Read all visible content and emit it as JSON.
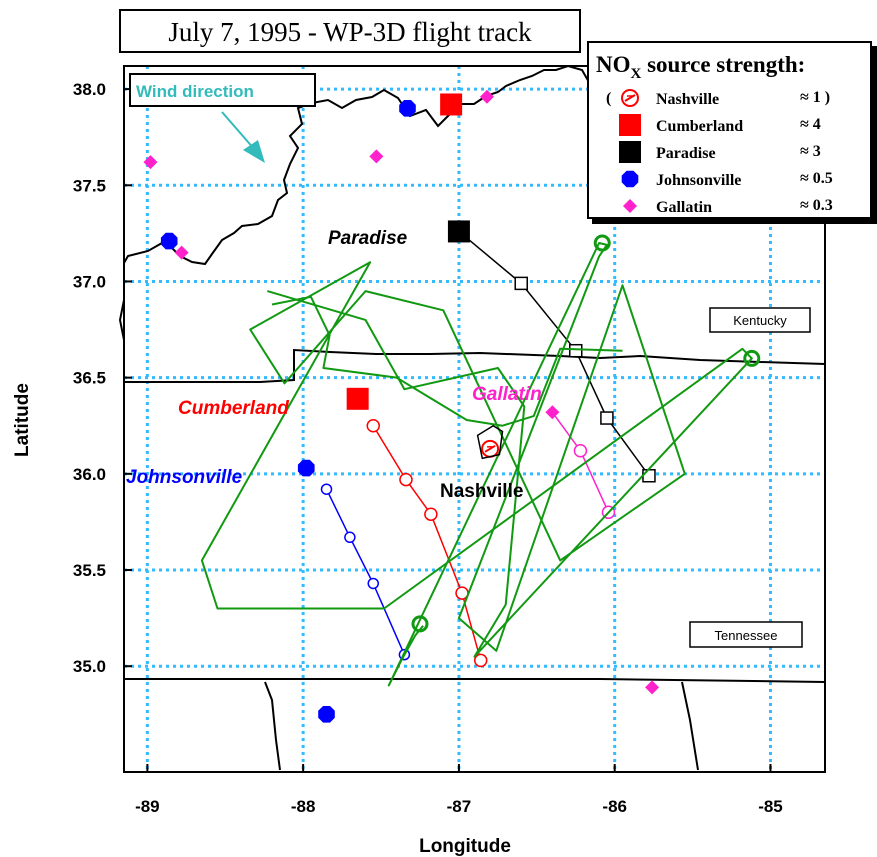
{
  "title": "July 7, 1995 - WP-3D flight track",
  "axes": {
    "xlabel": "Longitude",
    "ylabel": "Latitude",
    "xticks": [
      "-89",
      "-88",
      "-87",
      "-86",
      "-85"
    ],
    "yticks": [
      "35.0",
      "35.5",
      "36.0",
      "36.5",
      "37.0",
      "37.5",
      "38.0"
    ],
    "xrange": [
      -89.15,
      -84.65
    ],
    "yrange": [
      34.45,
      38.12
    ],
    "grid": true
  },
  "colors": {
    "grid": "#33bbff",
    "track": "#119911",
    "cumberland": "#ff0000",
    "paradise": "#000000",
    "johnsonville": "#0000ff",
    "gallatin": "#ff22cc",
    "nashville": "#ff0000",
    "wind": "#33bbbb"
  },
  "legend": {
    "title_main": "NO",
    "title_sub": "X",
    "title_rest": " source strength:",
    "placement": "top-right",
    "rows": [
      {
        "name": "Nashville",
        "value": "≈ 1 )",
        "marker": "nashville-symbol",
        "prefix": "("
      },
      {
        "name": "Cumberland",
        "value": "≈ 4",
        "marker": "red-square"
      },
      {
        "name": "Paradise",
        "value": "≈ 3",
        "marker": "black-square"
      },
      {
        "name": "Johnsonville",
        "value": "≈ 0.5",
        "marker": "blue-octagon"
      },
      {
        "name": "Gallatin",
        "value": "≈ 0.3",
        "marker": "magenta-diamond"
      }
    ]
  },
  "state_labels": {
    "kentucky": "Kentucky",
    "tennessee": "Tennessee"
  },
  "wind_label": "Wind direction",
  "plant_labels": {
    "paradise": "Paradise",
    "cumberland": "Cumberland",
    "gallatin": "Gallatin",
    "johnsonville": "Johnsonville",
    "nashville": "Nashville"
  },
  "map_data": {
    "power_plants": [
      {
        "name": "Paradise",
        "lon": -87.0,
        "lat": 37.26,
        "marker": "black-square"
      },
      {
        "name": "Cumberland",
        "lon": -87.65,
        "lat": 36.39,
        "marker": "red-square"
      },
      {
        "name": "Johnsonville",
        "lon": -87.98,
        "lat": 36.03,
        "marker": "blue-octagon"
      },
      {
        "name": "Gallatin",
        "lon": -86.4,
        "lat": 36.32,
        "marker": "magenta-diamond"
      },
      {
        "name": "Nashville",
        "lon": -86.8,
        "lat": 36.13,
        "marker": "nashville-symbol"
      }
    ],
    "extra_markers": [
      {
        "lon": -87.05,
        "lat": 37.92,
        "marker": "red-square"
      },
      {
        "lon": -87.33,
        "lat": 37.9,
        "marker": "blue-octagon"
      },
      {
        "lon": -86.82,
        "lat": 37.96,
        "marker": "magenta-diamond"
      },
      {
        "lon": -88.98,
        "lat": 37.62,
        "marker": "magenta-diamond"
      },
      {
        "lon": -87.53,
        "lat": 37.65,
        "marker": "magenta-diamond"
      },
      {
        "lon": -88.86,
        "lat": 37.21,
        "marker": "blue-octagon"
      },
      {
        "lon": -88.78,
        "lat": 37.15,
        "marker": "magenta-diamond"
      },
      {
        "lon": -87.85,
        "lat": 34.75,
        "marker": "blue-octagon"
      },
      {
        "lon": -85.76,
        "lat": 34.89,
        "marker": "magenta-diamond"
      }
    ],
    "plume_transects": {
      "paradise": [
        [
          -87.0,
          37.26
        ],
        [
          -86.6,
          36.99
        ],
        [
          -86.25,
          36.64
        ],
        [
          -86.05,
          36.29
        ],
        [
          -85.78,
          35.99
        ]
      ],
      "cumberland": [
        [
          -87.55,
          36.25
        ],
        [
          -87.34,
          35.97
        ],
        [
          -87.18,
          35.79
        ],
        [
          -86.98,
          35.38
        ],
        [
          -86.86,
          35.03
        ]
      ],
      "johnsonville": [
        [
          -87.85,
          35.92
        ],
        [
          -87.7,
          35.67
        ],
        [
          -87.55,
          35.43
        ],
        [
          -87.35,
          35.06
        ]
      ],
      "gallatin": [
        [
          -86.4,
          36.32
        ],
        [
          -86.22,
          36.12
        ],
        [
          -86.04,
          35.8
        ]
      ]
    },
    "flight_track": [
      [
        -87.23,
        35.21
      ],
      [
        -87.28,
        35.16
      ],
      [
        -87.37,
        35.03
      ],
      [
        -87.45,
        34.9
      ],
      [
        -86.1,
        37.2
      ],
      [
        -86.05,
        37.19
      ],
      [
        -86.1,
        37.13
      ],
      [
        -87.0,
        35.25
      ],
      [
        -86.76,
        35.08
      ],
      [
        -85.95,
        36.98
      ],
      [
        -85.55,
        36.0
      ],
      [
        -86.35,
        35.55
      ],
      [
        -87.1,
        36.85
      ],
      [
        -87.6,
        36.95
      ],
      [
        -88.12,
        36.47
      ],
      [
        -88.34,
        36.75
      ],
      [
        -87.57,
        37.1
      ],
      [
        -88.65,
        35.55
      ],
      [
        -88.55,
        35.3
      ],
      [
        -87.48,
        35.3
      ],
      [
        -85.18,
        36.65
      ],
      [
        -85.12,
        36.6
      ],
      [
        -86.9,
        35.05
      ],
      [
        -86.7,
        35.32
      ],
      [
        -86.58,
        36.35
      ],
      [
        -86.75,
        36.55
      ],
      [
        -87.35,
        36.44
      ],
      [
        -87.6,
        36.8
      ],
      [
        -88.02,
        36.9
      ],
      [
        -88.23,
        36.95
      ]
    ],
    "paradise_loop_track": [
      [
        -88.2,
        36.88
      ],
      [
        -87.95,
        36.92
      ],
      [
        -87.83,
        36.72
      ],
      [
        -87.87,
        36.55
      ],
      [
        -87.4,
        36.5
      ],
      [
        -86.95,
        36.28
      ],
      [
        -86.72,
        36.25
      ],
      [
        -86.52,
        36.3
      ],
      [
        -86.35,
        36.65
      ],
      [
        -85.95,
        36.64
      ]
    ]
  }
}
